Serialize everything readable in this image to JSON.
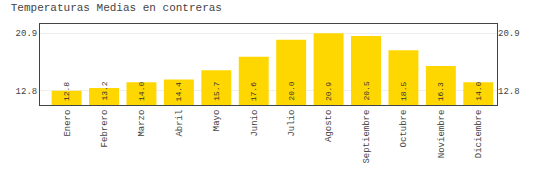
{
  "chart_data": {
    "type": "bar",
    "title": "Temperaturas Medias en contreras",
    "categories": [
      "Enero",
      "Febrero",
      "Marzo",
      "Abril",
      "Mayo",
      "Junio",
      "Julio",
      "Agosto",
      "Septiembre",
      "Octubre",
      "Noviembre",
      "Diciembre"
    ],
    "values": [
      12.8,
      13.2,
      14.0,
      14.4,
      15.7,
      17.6,
      20.0,
      20.9,
      20.5,
      18.5,
      16.3,
      14.0
    ],
    "value_labels": [
      "12.8",
      "13.2",
      "14.0",
      "14.4",
      "15.7",
      "17.6",
      "20.0",
      "20.9",
      "20.5",
      "18.5",
      "16.3",
      "14.0"
    ],
    "color": "#FFD700",
    "data_labels": true,
    "ylim": [
      10.8,
      22.2
    ],
    "yticks": [
      12.8,
      20.9
    ],
    "y2lim": [
      10.8,
      22.2
    ],
    "y2ticks": [
      12.8,
      20.9
    ],
    "grid": true
  }
}
